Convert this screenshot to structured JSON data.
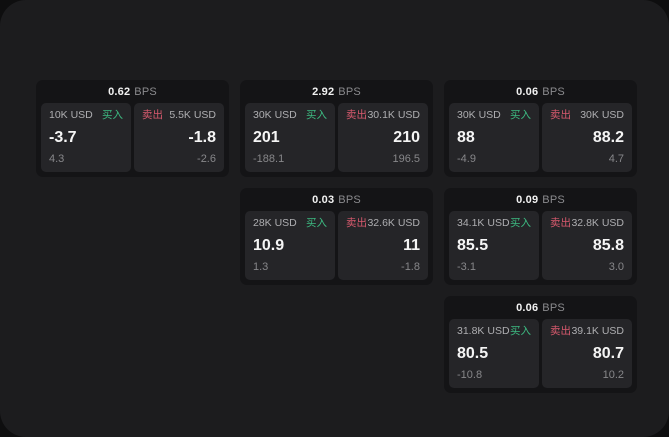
{
  "theme": {
    "outer_background": "#0e0e0f",
    "panel_background": "#1c1c1e",
    "card_background": "#141416",
    "tile_background": "#252528",
    "text_primary": "#f2f2f2",
    "text_secondary": "#aeaeb1",
    "text_muted": "#87878a",
    "buy_color": "#3dbb82",
    "sell_color": "#d95a6e"
  },
  "labels": {
    "bps": "BPS",
    "buy": "买入",
    "sell": "卖出"
  },
  "cards": [
    {
      "bps": "0.62",
      "buy": {
        "notional": "10K USD",
        "price": "-3.7",
        "delta": "4.3"
      },
      "sell": {
        "notional": "5.5K USD",
        "price": "-1.8",
        "delta": "-2.6"
      }
    },
    {
      "bps": "2.92",
      "buy": {
        "notional": "30K USD",
        "price": "201",
        "delta": "-188.1"
      },
      "sell": {
        "notional": "30.1K USD",
        "price": "210",
        "delta": "196.5"
      }
    },
    {
      "bps": "0.06",
      "buy": {
        "notional": "30K USD",
        "price": "88",
        "delta": "-4.9"
      },
      "sell": {
        "notional": "30K USD",
        "price": "88.2",
        "delta": "4.7"
      }
    },
    {
      "bps": "0.03",
      "buy": {
        "notional": "28K USD",
        "price": "10.9",
        "delta": "1.3"
      },
      "sell": {
        "notional": "32.6K USD",
        "price": "11",
        "delta": "-1.8"
      }
    },
    {
      "bps": "0.09",
      "buy": {
        "notional": "34.1K USD",
        "price": "85.5",
        "delta": "-3.1"
      },
      "sell": {
        "notional": "32.8K USD",
        "price": "85.8",
        "delta": "3.0"
      }
    },
    {
      "bps": "0.06",
      "buy": {
        "notional": "31.8K USD",
        "price": "80.5",
        "delta": "-10.8"
      },
      "sell": {
        "notional": "39.1K USD",
        "price": "80.7",
        "delta": "10.2"
      }
    }
  ]
}
